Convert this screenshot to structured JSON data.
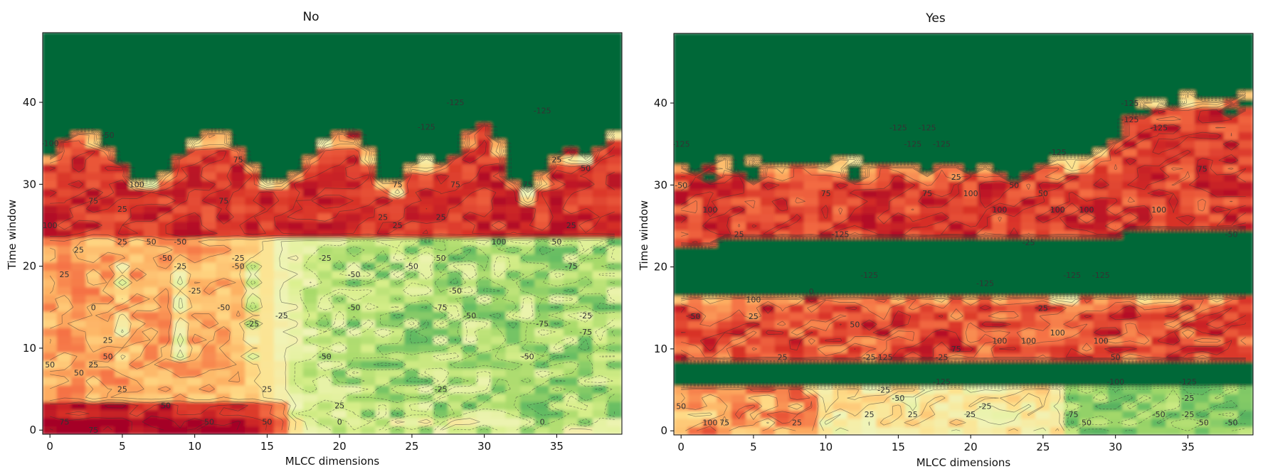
{
  "chart_data": [
    {
      "type": "heatmap",
      "title": "No",
      "xlabel": "MLCC dimensions",
      "ylabel": "Time window",
      "xlim": [
        -0.5,
        39.5
      ],
      "ylim": [
        -0.5,
        48.5
      ],
      "xticks": [
        0,
        5,
        10,
        15,
        20,
        25,
        30,
        35
      ],
      "yticks": [
        0,
        10,
        20,
        30,
        40
      ],
      "colormap": "RdYlGn_r (red = high, green = low)",
      "contour_levels": [
        -125,
        -100,
        -75,
        -50,
        -25,
        0,
        25,
        50,
        75,
        100,
        125
      ],
      "approx_value_bands": [
        {
          "time_window": "34-48",
          "value": "≤ -125 (saturated green)"
        },
        {
          "time_window": "24-32",
          "value": "75 to 125 (red band)"
        },
        {
          "time_window": "0-23, MLCC 0-16",
          "value": "0 to 75 (yellow-orange)"
        },
        {
          "time_window": "0-23, MLCC 17-39",
          "value": "-100 to 25 (mixed green)"
        },
        {
          "time_window": "0-4, MLCC 0-16",
          "value": "75 to 100 (red)"
        }
      ],
      "contour_labels": [
        {
          "x": 0,
          "y": 35,
          "text": "-100"
        },
        {
          "x": 4,
          "y": 36,
          "text": "-50"
        },
        {
          "x": 6,
          "y": 30,
          "text": "100"
        },
        {
          "x": 3,
          "y": 28,
          "text": "75"
        },
        {
          "x": 5,
          "y": 27,
          "text": "25"
        },
        {
          "x": 12,
          "y": 28,
          "text": "75"
        },
        {
          "x": 13,
          "y": 33,
          "text": "75"
        },
        {
          "x": 24,
          "y": 30,
          "text": "75"
        },
        {
          "x": 28,
          "y": 30,
          "text": "75"
        },
        {
          "x": 33,
          "y": 30,
          "text": "75"
        },
        {
          "x": 35,
          "y": 33,
          "text": "25"
        },
        {
          "x": 37,
          "y": 32,
          "text": "50"
        },
        {
          "x": 26,
          "y": 37,
          "text": "-125"
        },
        {
          "x": 28,
          "y": 40,
          "text": "-125"
        },
        {
          "x": 34,
          "y": 39,
          "text": "-125"
        },
        {
          "x": 0,
          "y": 25,
          "text": "100"
        },
        {
          "x": 2,
          "y": 22,
          "text": "25"
        },
        {
          "x": 1,
          "y": 19,
          "text": "25"
        },
        {
          "x": 5,
          "y": 23,
          "text": "25"
        },
        {
          "x": 7,
          "y": 23,
          "text": "50"
        },
        {
          "x": 9,
          "y": 23,
          "text": "-50"
        },
        {
          "x": 9,
          "y": 20,
          "text": "-25"
        },
        {
          "x": 13,
          "y": 21,
          "text": "-25"
        },
        {
          "x": 13,
          "y": 20,
          "text": "-50"
        },
        {
          "x": 14,
          "y": 13,
          "text": "-25"
        },
        {
          "x": 12,
          "y": 15,
          "text": "-50"
        },
        {
          "x": 16,
          "y": 14,
          "text": "-25"
        },
        {
          "x": 19,
          "y": 21,
          "text": "-25"
        },
        {
          "x": 21,
          "y": 19,
          "text": "-50"
        },
        {
          "x": 21,
          "y": 15,
          "text": "-50"
        },
        {
          "x": 19,
          "y": 9,
          "text": "-50"
        },
        {
          "x": 23,
          "y": 26,
          "text": "25"
        },
        {
          "x": 24,
          "y": 25,
          "text": "25"
        },
        {
          "x": 25,
          "y": 20,
          "text": "-50"
        },
        {
          "x": 27,
          "y": 26,
          "text": "25"
        },
        {
          "x": 27,
          "y": 21,
          "text": "50"
        },
        {
          "x": 28,
          "y": 17,
          "text": "-50"
        },
        {
          "x": 27,
          "y": 15,
          "text": "-75"
        },
        {
          "x": 29,
          "y": 14,
          "text": "-50"
        },
        {
          "x": 31,
          "y": 23,
          "text": "100"
        },
        {
          "x": 35,
          "y": 23,
          "text": "50"
        },
        {
          "x": 36,
          "y": 25,
          "text": "25"
        },
        {
          "x": 36,
          "y": 20,
          "text": "-75"
        },
        {
          "x": 37,
          "y": 14,
          "text": "-25"
        },
        {
          "x": 37,
          "y": 12,
          "text": "-75"
        },
        {
          "x": 33,
          "y": 9,
          "text": "-50"
        },
        {
          "x": 34,
          "y": 13,
          "text": "-75"
        },
        {
          "x": 27,
          "y": 5,
          "text": "-25"
        },
        {
          "x": 3,
          "y": 15,
          "text": "0"
        },
        {
          "x": 4,
          "y": 11,
          "text": "25"
        },
        {
          "x": 4,
          "y": 9,
          "text": "50"
        },
        {
          "x": 2,
          "y": 7,
          "text": "50"
        },
        {
          "x": 5,
          "y": 5,
          "text": "25"
        },
        {
          "x": 3,
          "y": 8,
          "text": "25"
        },
        {
          "x": 0,
          "y": 8,
          "text": "50"
        },
        {
          "x": 1,
          "y": 1,
          "text": "75"
        },
        {
          "x": 3,
          "y": 0,
          "text": "75"
        },
        {
          "x": 11,
          "y": 1,
          "text": "50"
        },
        {
          "x": 15,
          "y": 1,
          "text": "50"
        },
        {
          "x": 15,
          "y": 5,
          "text": "25"
        },
        {
          "x": 20,
          "y": 3,
          "text": "25"
        },
        {
          "x": 20,
          "y": 1,
          "text": "0"
        },
        {
          "x": 34,
          "y": 1,
          "text": "0"
        },
        {
          "x": 8,
          "y": 3,
          "text": "50"
        },
        {
          "x": 8,
          "y": 21,
          "text": "-50"
        },
        {
          "x": 10,
          "y": 17,
          "text": "-25"
        }
      ]
    },
    {
      "type": "heatmap",
      "title": "Yes",
      "xlabel": "MLCC dimensions",
      "ylabel": "Time window",
      "xlim": [
        -0.5,
        39.5
      ],
      "ylim": [
        -0.5,
        48.5
      ],
      "xticks": [
        0,
        5,
        10,
        15,
        20,
        25,
        30,
        35
      ],
      "yticks": [
        0,
        10,
        20,
        30,
        40
      ],
      "colormap": "RdYlGn_r (red = high, green = low)",
      "contour_levels": [
        -125,
        -100,
        -75,
        -50,
        -25,
        0,
        25,
        50,
        75,
        100,
        125
      ],
      "approx_value_bands": [
        {
          "time_window": "33-48 (MLCC 0-29), 41-48 (MLCC 30-39)",
          "value": "≤ -125 (saturated green)"
        },
        {
          "time_window": "23-31, MLCC 0-29",
          "value": "75 to 125 (red band)"
        },
        {
          "time_window": "25-40, MLCC 30-39",
          "value": "50 to 100 (red rising band)"
        },
        {
          "time_window": "17-22",
          "value": "≤ -125 (green gap)"
        },
        {
          "time_window": "9-16",
          "value": "50 to 125 (red band)"
        },
        {
          "time_window": "6-8",
          "value": "≤ -125 (green gap)"
        },
        {
          "time_window": "0-5",
          "value": "-75 to 100 (mixed)"
        }
      ],
      "contour_labels": [
        {
          "x": 0,
          "y": 35,
          "text": "-125"
        },
        {
          "x": 0,
          "y": 30,
          "text": "-50"
        },
        {
          "x": 2,
          "y": 27,
          "text": "100"
        },
        {
          "x": 10,
          "y": 29,
          "text": "75"
        },
        {
          "x": 15,
          "y": 37,
          "text": "-125"
        },
        {
          "x": 16,
          "y": 35,
          "text": "-125"
        },
        {
          "x": 17,
          "y": 37,
          "text": "-125"
        },
        {
          "x": 18,
          "y": 35,
          "text": "-125"
        },
        {
          "x": 17,
          "y": 29,
          "text": "75"
        },
        {
          "x": 19,
          "y": 31,
          "text": "25"
        },
        {
          "x": 20,
          "y": 29,
          "text": "100"
        },
        {
          "x": 23,
          "y": 30,
          "text": "50"
        },
        {
          "x": 25,
          "y": 29,
          "text": "50"
        },
        {
          "x": 22,
          "y": 27,
          "text": "100"
        },
        {
          "x": 26,
          "y": 27,
          "text": "100"
        },
        {
          "x": 28,
          "y": 27,
          "text": "100"
        },
        {
          "x": 26,
          "y": 34,
          "text": "-125"
        },
        {
          "x": 31,
          "y": 40,
          "text": "-125"
        },
        {
          "x": 31,
          "y": 38,
          "text": "-125"
        },
        {
          "x": 33,
          "y": 37,
          "text": "-125"
        },
        {
          "x": 36,
          "y": 32,
          "text": "75"
        },
        {
          "x": 38,
          "y": 24,
          "text": "-50"
        },
        {
          "x": 33,
          "y": 27,
          "text": "100"
        },
        {
          "x": 4,
          "y": 24,
          "text": "25"
        },
        {
          "x": 11,
          "y": 24,
          "text": "-125"
        },
        {
          "x": 24,
          "y": 23,
          "text": "-25"
        },
        {
          "x": 13,
          "y": 19,
          "text": "-125"
        },
        {
          "x": 21,
          "y": 18,
          "text": "-125"
        },
        {
          "x": 27,
          "y": 19,
          "text": "-125"
        },
        {
          "x": 29,
          "y": 19,
          "text": "-125"
        },
        {
          "x": 9,
          "y": 17,
          "text": "0"
        },
        {
          "x": 5,
          "y": 16,
          "text": "100"
        },
        {
          "x": 1,
          "y": 14,
          "text": "50"
        },
        {
          "x": 5,
          "y": 14,
          "text": "25"
        },
        {
          "x": 12,
          "y": 13,
          "text": "50"
        },
        {
          "x": 25,
          "y": 15,
          "text": "25"
        },
        {
          "x": 26,
          "y": 12,
          "text": "100"
        },
        {
          "x": 22,
          "y": 11,
          "text": "100"
        },
        {
          "x": 24,
          "y": 11,
          "text": "100"
        },
        {
          "x": 29,
          "y": 11,
          "text": "100"
        },
        {
          "x": 19,
          "y": 10,
          "text": "75"
        },
        {
          "x": 30,
          "y": 9,
          "text": "50"
        },
        {
          "x": 7,
          "y": 9,
          "text": "25"
        },
        {
          "x": 14,
          "y": 9,
          "text": "-125"
        },
        {
          "x": 13,
          "y": 9,
          "text": "-25"
        },
        {
          "x": 18,
          "y": 9,
          "text": "-25"
        },
        {
          "x": 18,
          "y": 6,
          "text": "-125"
        },
        {
          "x": 30,
          "y": 6,
          "text": "-100"
        },
        {
          "x": 35,
          "y": 6,
          "text": "-125"
        },
        {
          "x": 35,
          "y": 4,
          "text": "-25"
        },
        {
          "x": 35,
          "y": 2,
          "text": "-25"
        },
        {
          "x": 36,
          "y": 1,
          "text": "-50"
        },
        {
          "x": 38,
          "y": 1,
          "text": "-50"
        },
        {
          "x": 33,
          "y": 2,
          "text": "-50"
        },
        {
          "x": 27,
          "y": 2,
          "text": "-75"
        },
        {
          "x": 28,
          "y": 1,
          "text": "50"
        },
        {
          "x": 21,
          "y": 3,
          "text": "-25"
        },
        {
          "x": 20,
          "y": 2,
          "text": "25"
        },
        {
          "x": 16,
          "y": 2,
          "text": "25"
        },
        {
          "x": 13,
          "y": 2,
          "text": "25"
        },
        {
          "x": 0,
          "y": 3,
          "text": "50"
        },
        {
          "x": 2,
          "y": 1,
          "text": "100"
        },
        {
          "x": 3,
          "y": 1,
          "text": "75"
        },
        {
          "x": 8,
          "y": 1,
          "text": "25"
        },
        {
          "x": 15,
          "y": 4,
          "text": "-50"
        },
        {
          "x": 14,
          "y": 5,
          "text": "-25"
        }
      ]
    }
  ]
}
